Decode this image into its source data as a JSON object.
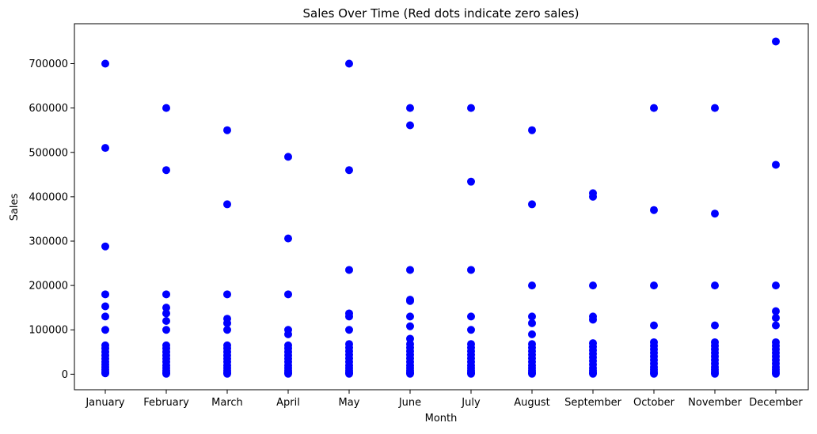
{
  "chart_data": {
    "type": "scatter",
    "title": "Sales Over Time (Red dots indicate zero sales)",
    "xlabel": "Month",
    "ylabel": "Sales",
    "categories": [
      "January",
      "February",
      "March",
      "April",
      "May",
      "June",
      "July",
      "August",
      "September",
      "October",
      "November",
      "December"
    ],
    "yticks": [
      "0",
      "100000",
      "200000",
      "300000",
      "400000",
      "500000",
      "600000",
      "700000"
    ],
    "ylim": [
      -35000,
      790000
    ],
    "grid": false,
    "point_color": "#0000ff",
    "series": [
      {
        "values": {
          "January": [
            700000,
            510000,
            288000,
            180000,
            153000,
            130000,
            100000,
            65000,
            58000,
            50000,
            42000,
            35000,
            28000,
            22000,
            16000,
            10000,
            5000,
            2000
          ],
          "February": [
            600000,
            460000,
            180000,
            150000,
            137000,
            120000,
            100000,
            65000,
            58000,
            50000,
            42000,
            35000,
            28000,
            20000,
            14000,
            8000,
            4000,
            1000
          ],
          "March": [
            550000,
            383000,
            180000,
            125000,
            115000,
            100000,
            65000,
            58000,
            50000,
            42000,
            35000,
            28000,
            20000,
            14000,
            8000,
            4000,
            1000
          ],
          "April": [
            490000,
            306000,
            180000,
            100000,
            90000,
            65000,
            58000,
            50000,
            42000,
            35000,
            28000,
            20000,
            14000,
            8000,
            4000,
            1000
          ],
          "May": [
            700000,
            460000,
            235000,
            137000,
            130000,
            100000,
            68000,
            60000,
            52000,
            44000,
            36000,
            28000,
            20000,
            14000,
            8000,
            4000,
            1000
          ],
          "June": [
            600000,
            561000,
            235000,
            168000,
            165000,
            130000,
            108000,
            80000,
            68000,
            60000,
            52000,
            44000,
            36000,
            28000,
            20000,
            14000,
            8000,
            4000,
            1000
          ],
          "July": [
            600000,
            434000,
            235000,
            130000,
            100000,
            68000,
            60000,
            52000,
            44000,
            36000,
            28000,
            20000,
            14000,
            8000,
            4000,
            1000
          ],
          "August": [
            550000,
            383000,
            200000,
            130000,
            115000,
            90000,
            68000,
            60000,
            52000,
            44000,
            36000,
            28000,
            20000,
            14000,
            8000,
            4000,
            1000
          ],
          "September": [
            408000,
            400000,
            200000,
            130000,
            123000,
            70000,
            62000,
            54000,
            46000,
            38000,
            30000,
            22000,
            14000,
            8000,
            4000,
            1000
          ],
          "October": [
            600000,
            370000,
            200000,
            110000,
            72000,
            64000,
            56000,
            48000,
            40000,
            32000,
            24000,
            16000,
            10000,
            5000,
            1000
          ],
          "November": [
            600000,
            362000,
            200000,
            110000,
            72000,
            64000,
            56000,
            48000,
            40000,
            32000,
            24000,
            16000,
            10000,
            5000,
            1000
          ],
          "December": [
            750000,
            472000,
            200000,
            142000,
            127000,
            110000,
            72000,
            64000,
            56000,
            48000,
            40000,
            32000,
            24000,
            16000,
            10000,
            5000,
            1000
          ]
        }
      }
    ]
  }
}
